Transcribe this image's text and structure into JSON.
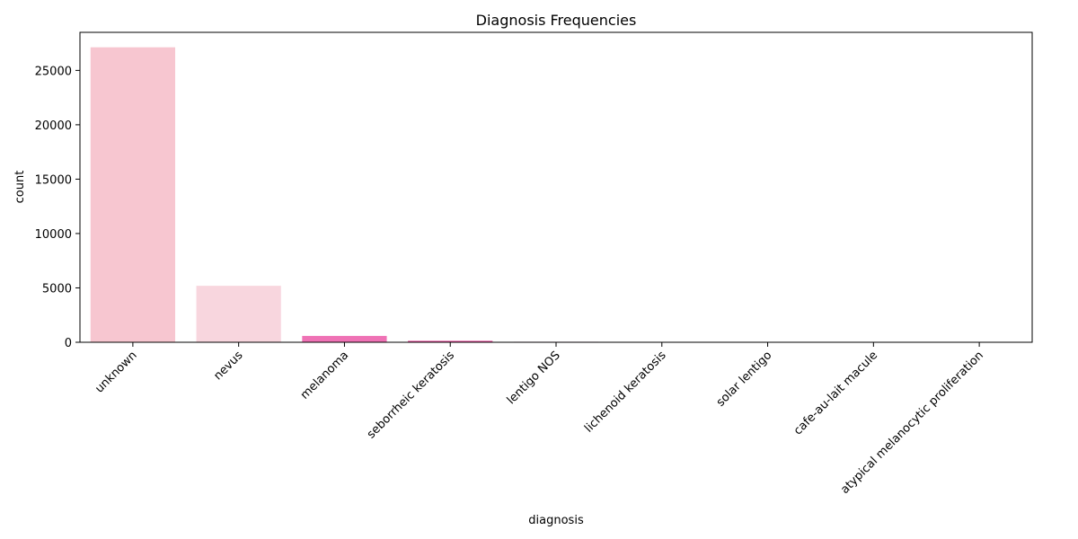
{
  "chart_data": {
    "type": "bar",
    "title": "Diagnosis Frequencies",
    "xlabel": "diagnosis",
    "ylabel": "count",
    "categories": [
      "unknown",
      "nevus",
      "melanoma",
      "seborrheic keratosis",
      "lentigo NOS",
      "lichenoid keratosis",
      "solar lentigo",
      "cafe-au-lait macule",
      "atypical melanocytic proliferation"
    ],
    "values": [
      27124,
      5193,
      584,
      135,
      44,
      37,
      7,
      1,
      1
    ],
    "bar_colors": [
      "#f7c6d0",
      "#f8d6de",
      "#ef72b5",
      "#e8549e",
      "#e0438f",
      "#db3a8a",
      "#d53584",
      "#cf307f",
      "#c92b7a"
    ],
    "yticks": [
      0,
      5000,
      10000,
      15000,
      20000,
      25000
    ],
    "ylim": [
      0,
      28500
    ],
    "grid": false
  }
}
